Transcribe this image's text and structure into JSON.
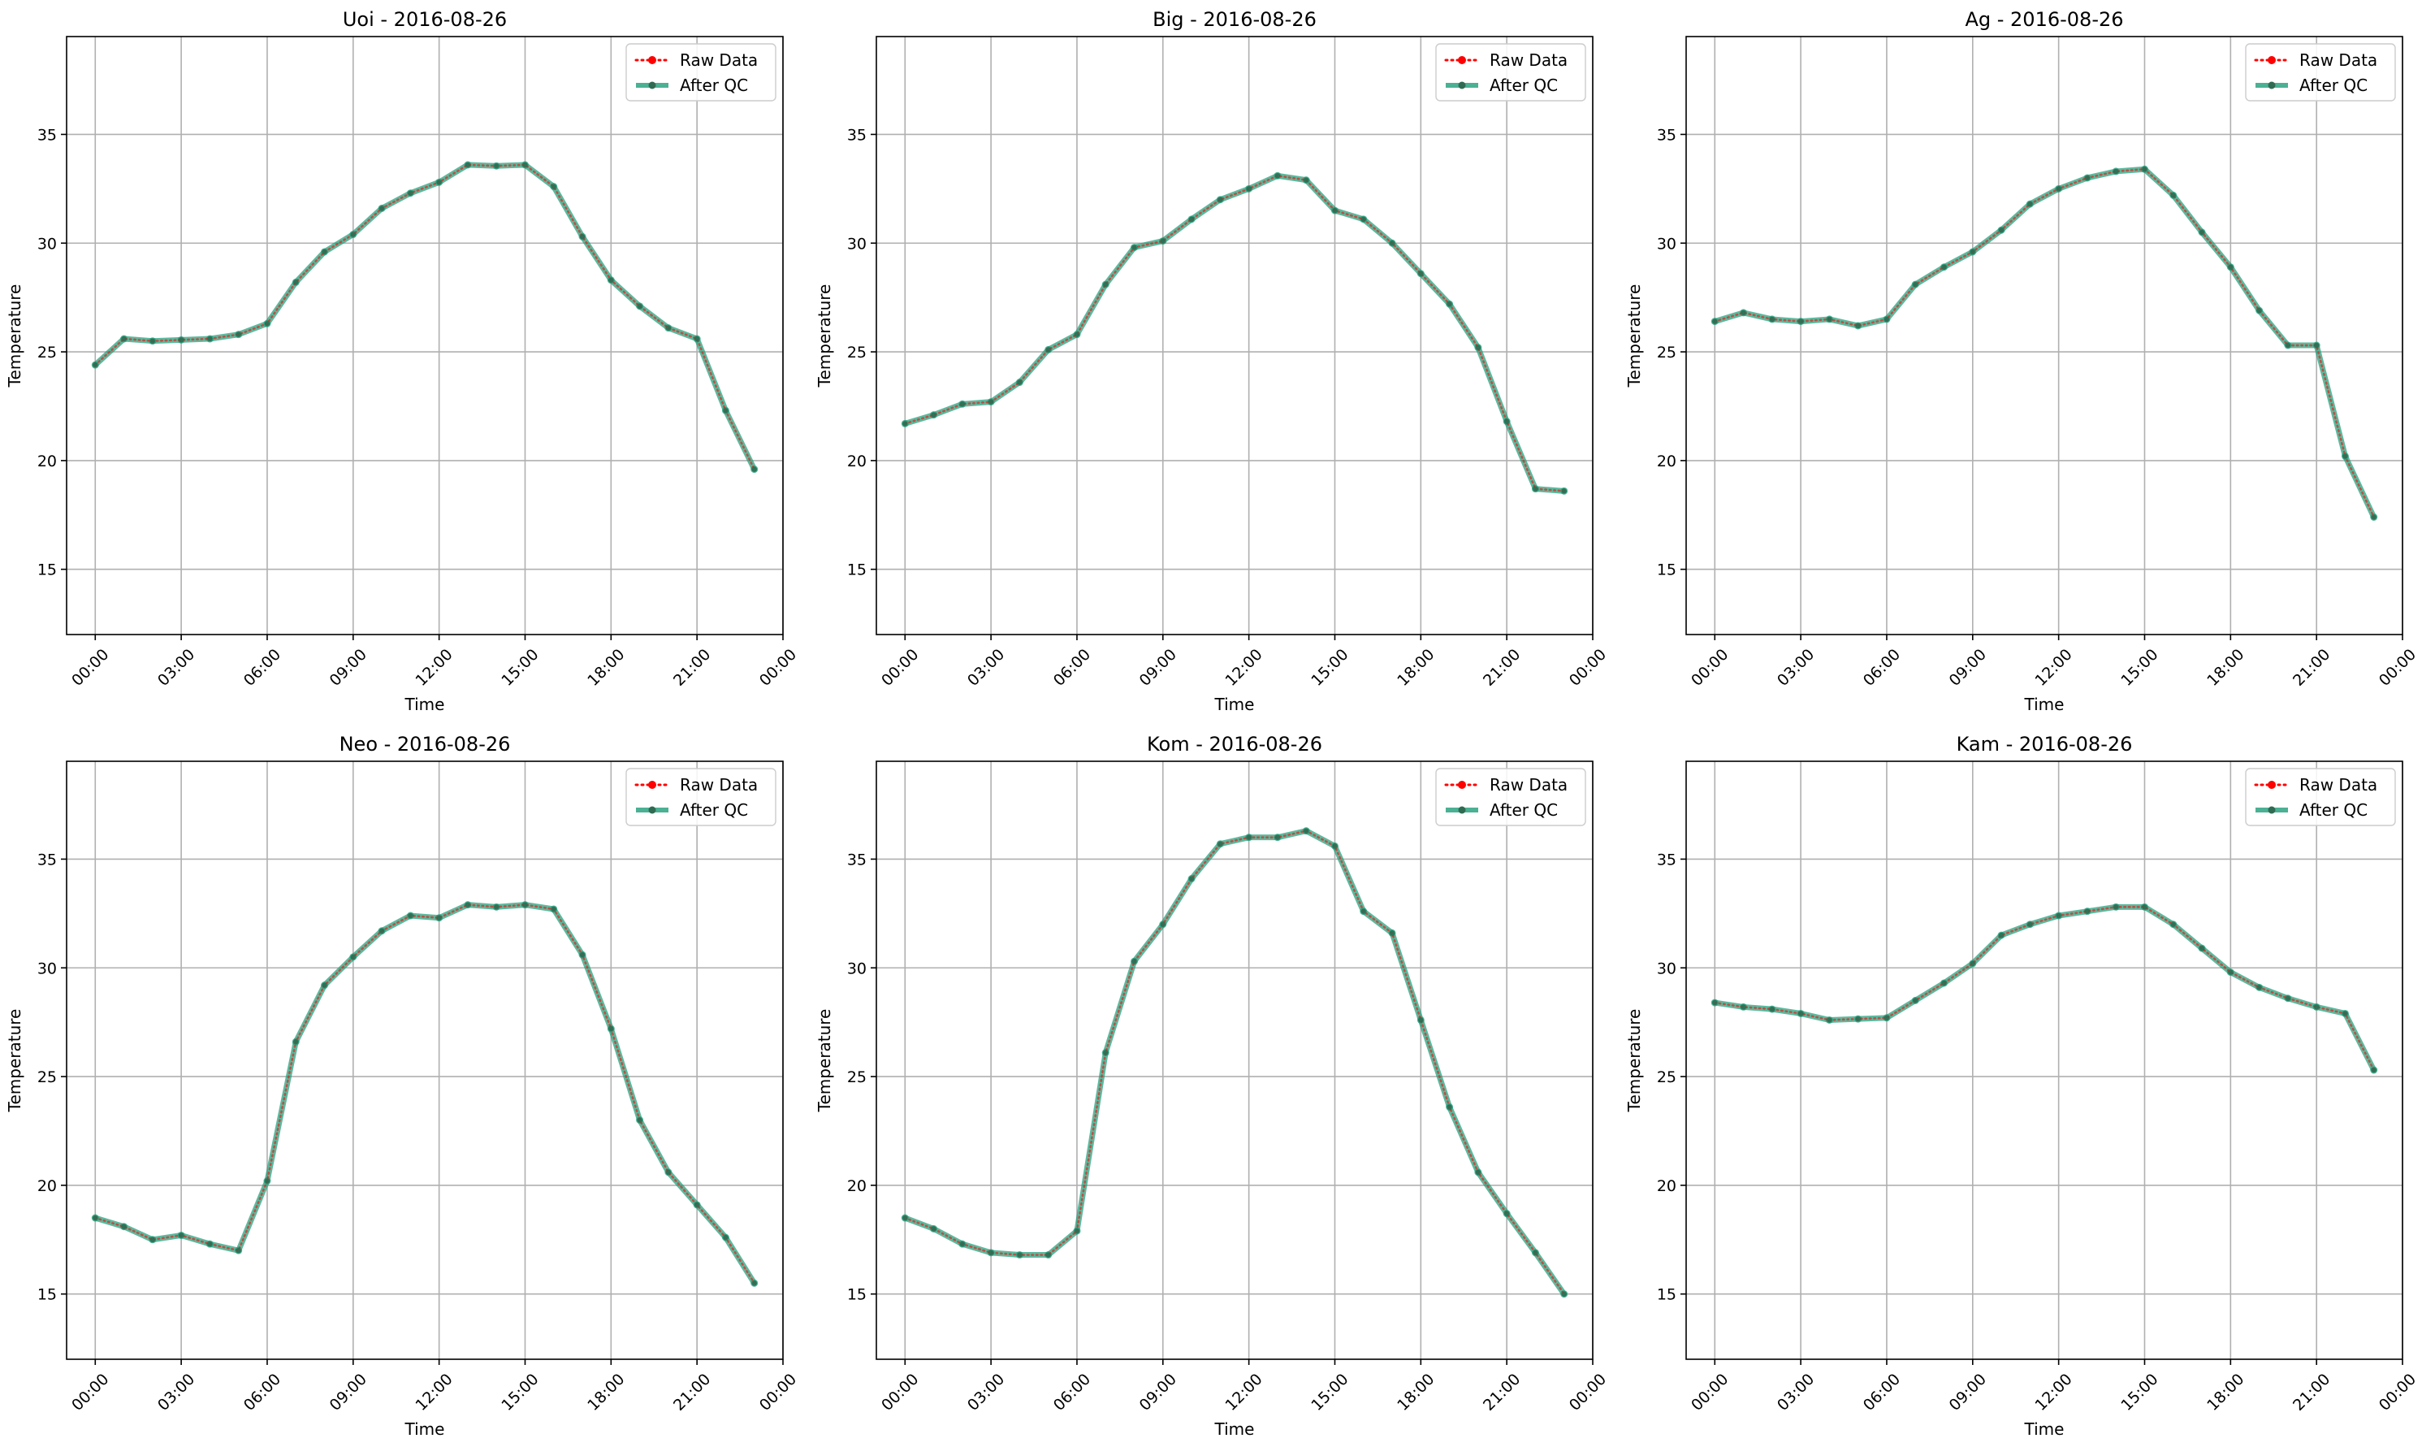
{
  "figure": {
    "background": "#ffffff"
  },
  "chart_data": [
    {
      "type": "line",
      "title": "Uoi - 2016-08-26",
      "xlabel": "Time",
      "ylabel": "Temperature",
      "xlim": [
        -1,
        24
      ],
      "ylim": [
        12,
        39.5
      ],
      "x_ticks": [
        0,
        3,
        6,
        9,
        12,
        15,
        18,
        21,
        24
      ],
      "x_tick_labels": [
        "00:00",
        "03:00",
        "06:00",
        "09:00",
        "12:00",
        "15:00",
        "18:00",
        "21:00",
        "00:00"
      ],
      "y_ticks": [
        15,
        20,
        25,
        30,
        35
      ],
      "y_tick_labels": [
        "15",
        "20",
        "25",
        "30",
        "35"
      ],
      "grid": true,
      "legend": "upper right",
      "x": [
        0,
        1,
        2,
        3,
        4,
        5,
        6,
        7,
        8,
        9,
        10,
        11,
        12,
        13,
        14,
        15,
        16,
        17,
        18,
        19,
        20,
        21,
        22,
        23
      ],
      "series": [
        {
          "name": "Raw Data",
          "color": "#ff0000",
          "style": "dotted",
          "values": [
            24.4,
            25.6,
            25.5,
            25.55,
            25.6,
            25.8,
            26.3,
            28.2,
            29.6,
            30.4,
            31.6,
            32.3,
            32.8,
            33.6,
            33.55,
            33.6,
            32.6,
            30.3,
            28.3,
            27.1,
            26.1,
            25.6,
            22.3,
            19.6
          ]
        },
        {
          "name": "After QC",
          "color": "#1f9e78",
          "style": "solid",
          "values": [
            24.4,
            25.6,
            25.5,
            25.55,
            25.6,
            25.8,
            26.3,
            28.2,
            29.6,
            30.4,
            31.6,
            32.3,
            32.8,
            33.6,
            33.55,
            33.6,
            32.6,
            30.3,
            28.3,
            27.1,
            26.1,
            25.6,
            22.3,
            19.6
          ]
        }
      ]
    },
    {
      "type": "line",
      "title": "Big - 2016-08-26",
      "xlabel": "Time",
      "ylabel": "Temperature",
      "xlim": [
        -1,
        24
      ],
      "ylim": [
        12,
        39.5
      ],
      "x_ticks": [
        0,
        3,
        6,
        9,
        12,
        15,
        18,
        21,
        24
      ],
      "x_tick_labels": [
        "00:00",
        "03:00",
        "06:00",
        "09:00",
        "12:00",
        "15:00",
        "18:00",
        "21:00",
        "00:00"
      ],
      "y_ticks": [
        15,
        20,
        25,
        30,
        35
      ],
      "y_tick_labels": [
        "15",
        "20",
        "25",
        "30",
        "35"
      ],
      "grid": true,
      "legend": "upper right",
      "x": [
        0,
        1,
        2,
        3,
        4,
        5,
        6,
        7,
        8,
        9,
        10,
        11,
        12,
        13,
        14,
        15,
        16,
        17,
        18,
        19,
        20,
        21,
        22,
        23
      ],
      "series": [
        {
          "name": "Raw Data",
          "color": "#ff0000",
          "style": "dotted",
          "values": [
            21.7,
            22.1,
            22.6,
            22.7,
            23.6,
            25.1,
            25.8,
            28.1,
            29.8,
            30.1,
            31.1,
            32.0,
            32.5,
            33.1,
            32.9,
            31.5,
            31.1,
            30.0,
            28.6,
            27.2,
            25.2,
            21.8,
            18.7,
            18.6
          ]
        },
        {
          "name": "After QC",
          "color": "#1f9e78",
          "style": "solid",
          "values": [
            21.7,
            22.1,
            22.6,
            22.7,
            23.6,
            25.1,
            25.8,
            28.1,
            29.8,
            30.1,
            31.1,
            32.0,
            32.5,
            33.1,
            32.9,
            31.5,
            31.1,
            30.0,
            28.6,
            27.2,
            25.2,
            21.8,
            18.7,
            18.6
          ]
        }
      ]
    },
    {
      "type": "line",
      "title": "Ag - 2016-08-26",
      "xlabel": "Time",
      "ylabel": "Temperature",
      "xlim": [
        -1,
        24
      ],
      "ylim": [
        12,
        39.5
      ],
      "x_ticks": [
        0,
        3,
        6,
        9,
        12,
        15,
        18,
        21,
        24
      ],
      "x_tick_labels": [
        "00:00",
        "03:00",
        "06:00",
        "09:00",
        "12:00",
        "15:00",
        "18:00",
        "21:00",
        "00:00"
      ],
      "y_ticks": [
        15,
        20,
        25,
        30,
        35
      ],
      "y_tick_labels": [
        "15",
        "20",
        "25",
        "30",
        "35"
      ],
      "grid": true,
      "legend": "upper right",
      "x": [
        0,
        1,
        2,
        3,
        4,
        5,
        6,
        7,
        8,
        9,
        10,
        11,
        12,
        13,
        14,
        15,
        16,
        17,
        18,
        19,
        20,
        21,
        22,
        23
      ],
      "series": [
        {
          "name": "Raw Data",
          "color": "#ff0000",
          "style": "dotted",
          "values": [
            26.4,
            26.8,
            26.5,
            26.4,
            26.5,
            26.2,
            26.5,
            28.1,
            28.9,
            29.6,
            30.6,
            31.8,
            32.5,
            33.0,
            33.3,
            33.4,
            32.2,
            30.5,
            28.9,
            26.9,
            25.3,
            25.3,
            20.2,
            17.4
          ]
        },
        {
          "name": "After QC",
          "color": "#1f9e78",
          "style": "solid",
          "values": [
            26.4,
            26.8,
            26.5,
            26.4,
            26.5,
            26.2,
            26.5,
            28.1,
            28.9,
            29.6,
            30.6,
            31.8,
            32.5,
            33.0,
            33.3,
            33.4,
            32.2,
            30.5,
            28.9,
            26.9,
            25.3,
            25.3,
            20.2,
            17.4
          ]
        }
      ]
    },
    {
      "type": "line",
      "title": "Neo - 2016-08-26",
      "xlabel": "Time",
      "ylabel": "Temperature",
      "xlim": [
        -1,
        24
      ],
      "ylim": [
        12,
        39.5
      ],
      "x_ticks": [
        0,
        3,
        6,
        9,
        12,
        15,
        18,
        21,
        24
      ],
      "x_tick_labels": [
        "00:00",
        "03:00",
        "06:00",
        "09:00",
        "12:00",
        "15:00",
        "18:00",
        "21:00",
        "00:00"
      ],
      "y_ticks": [
        15,
        20,
        25,
        30,
        35
      ],
      "y_tick_labels": [
        "15",
        "20",
        "25",
        "30",
        "35"
      ],
      "grid": true,
      "legend": "upper right",
      "x": [
        0,
        1,
        2,
        3,
        4,
        5,
        6,
        7,
        8,
        9,
        10,
        11,
        12,
        13,
        14,
        15,
        16,
        17,
        18,
        19,
        20,
        21,
        22,
        23
      ],
      "series": [
        {
          "name": "Raw Data",
          "color": "#ff0000",
          "style": "dotted",
          "values": [
            18.5,
            18.1,
            17.5,
            17.7,
            17.3,
            17.0,
            20.2,
            26.6,
            29.2,
            30.5,
            31.7,
            32.4,
            32.3,
            32.9,
            32.8,
            32.9,
            32.7,
            30.6,
            27.2,
            23.0,
            20.6,
            19.1,
            17.6,
            15.5
          ]
        },
        {
          "name": "After QC",
          "color": "#1f9e78",
          "style": "solid",
          "values": [
            18.5,
            18.1,
            17.5,
            17.7,
            17.3,
            17.0,
            20.2,
            26.6,
            29.2,
            30.5,
            31.7,
            32.4,
            32.3,
            32.9,
            32.8,
            32.9,
            32.7,
            30.6,
            27.2,
            23.0,
            20.6,
            19.1,
            17.6,
            15.5
          ]
        }
      ]
    },
    {
      "type": "line",
      "title": "Kom - 2016-08-26",
      "xlabel": "Time",
      "ylabel": "Temperature",
      "xlim": [
        -1,
        24
      ],
      "ylim": [
        12,
        39.5
      ],
      "x_ticks": [
        0,
        3,
        6,
        9,
        12,
        15,
        18,
        21,
        24
      ],
      "x_tick_labels": [
        "00:00",
        "03:00",
        "06:00",
        "09:00",
        "12:00",
        "15:00",
        "18:00",
        "21:00",
        "00:00"
      ],
      "y_ticks": [
        15,
        20,
        25,
        30,
        35
      ],
      "y_tick_labels": [
        "15",
        "20",
        "25",
        "30",
        "35"
      ],
      "grid": true,
      "legend": "upper right",
      "x": [
        0,
        1,
        2,
        3,
        4,
        5,
        6,
        7,
        8,
        9,
        10,
        11,
        12,
        13,
        14,
        15,
        16,
        17,
        18,
        19,
        20,
        21,
        22,
        23
      ],
      "series": [
        {
          "name": "Raw Data",
          "color": "#ff0000",
          "style": "dotted",
          "values": [
            18.5,
            18.0,
            17.3,
            16.9,
            16.8,
            16.8,
            17.9,
            26.1,
            30.3,
            32.0,
            34.1,
            35.7,
            36.0,
            36.0,
            36.3,
            35.6,
            32.6,
            31.6,
            27.6,
            23.6,
            20.6,
            18.7,
            16.9,
            15.0
          ]
        },
        {
          "name": "After QC",
          "color": "#1f9e78",
          "style": "solid",
          "values": [
            18.5,
            18.0,
            17.3,
            16.9,
            16.8,
            16.8,
            17.9,
            26.1,
            30.3,
            32.0,
            34.1,
            35.7,
            36.0,
            36.0,
            36.3,
            35.6,
            32.6,
            31.6,
            27.6,
            23.6,
            20.6,
            18.7,
            16.9,
            15.0
          ]
        }
      ]
    },
    {
      "type": "line",
      "title": "Kam - 2016-08-26",
      "xlabel": "Time",
      "ylabel": "Temperature",
      "xlim": [
        -1,
        24
      ],
      "ylim": [
        12,
        39.5
      ],
      "x_ticks": [
        0,
        3,
        6,
        9,
        12,
        15,
        18,
        21,
        24
      ],
      "x_tick_labels": [
        "00:00",
        "03:00",
        "06:00",
        "09:00",
        "12:00",
        "15:00",
        "18:00",
        "21:00",
        "00:00"
      ],
      "y_ticks": [
        15,
        20,
        25,
        30,
        35
      ],
      "y_tick_labels": [
        "15",
        "20",
        "25",
        "30",
        "35"
      ],
      "grid": true,
      "legend": "upper right",
      "x": [
        0,
        1,
        2,
        3,
        4,
        5,
        6,
        7,
        8,
        9,
        10,
        11,
        12,
        13,
        14,
        15,
        16,
        17,
        18,
        19,
        20,
        21,
        22,
        23
      ],
      "series": [
        {
          "name": "Raw Data",
          "color": "#ff0000",
          "style": "dotted",
          "values": [
            28.4,
            28.2,
            28.1,
            27.9,
            27.6,
            27.65,
            27.7,
            28.5,
            29.3,
            30.2,
            31.5,
            32.0,
            32.4,
            32.6,
            32.8,
            32.8,
            32.0,
            30.9,
            29.8,
            29.1,
            28.6,
            28.2,
            27.9,
            25.3
          ]
        },
        {
          "name": "After QC",
          "color": "#1f9e78",
          "style": "solid",
          "values": [
            28.4,
            28.2,
            28.1,
            27.9,
            27.6,
            27.65,
            27.7,
            28.5,
            29.3,
            30.2,
            31.5,
            32.0,
            32.4,
            32.6,
            32.8,
            32.8,
            32.0,
            30.9,
            29.8,
            29.1,
            28.6,
            28.2,
            27.9,
            25.3
          ]
        }
      ]
    }
  ]
}
